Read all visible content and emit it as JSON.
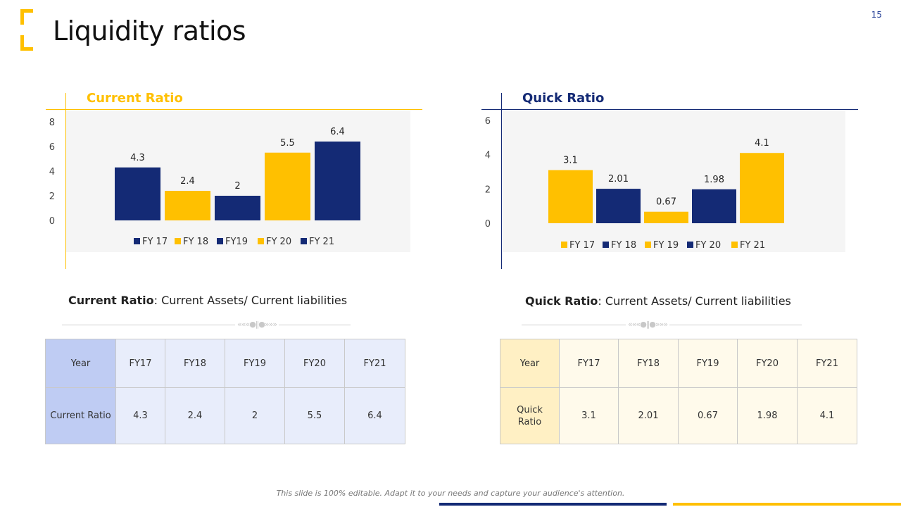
{
  "header": {
    "title": "Liquidity ratios",
    "page_number": "15"
  },
  "colors": {
    "navy": "#142a75",
    "yellow": "#ffc000",
    "blue_table_head": "#bfccf3",
    "blue_table_body": "#e8edfb",
    "yellow_table_head": "#fff0c4",
    "yellow_table_body": "#fffaeb"
  },
  "chart_data": [
    {
      "type": "bar",
      "title": "Current Ratio",
      "categories": [
        "FY 17",
        "FY 18",
        "FY19",
        "FY 20",
        "FY 21"
      ],
      "values": [
        4.3,
        2.4,
        2,
        5.5,
        6.4
      ],
      "value_labels": [
        "4.3",
        "2.4",
        "2",
        "5.5",
        "6.4"
      ],
      "bar_colors": [
        "#142a75",
        "#ffc000",
        "#142a75",
        "#ffc000",
        "#142a75"
      ],
      "yticks": [
        "0",
        "2",
        "4",
        "6",
        "8"
      ],
      "ylim": [
        0,
        8
      ],
      "legend_position": "bottom"
    },
    {
      "type": "bar",
      "title": "Quick Ratio",
      "categories": [
        "FY 17",
        "FY 18",
        "FY 19",
        "FY 20",
        "FY 21"
      ],
      "values": [
        3.1,
        2.01,
        0.67,
        1.98,
        4.1
      ],
      "value_labels": [
        "3.1",
        "2.01",
        "0.67",
        "1.98",
        "4.1"
      ],
      "bar_colors": [
        "#ffc000",
        "#142a75",
        "#ffc000",
        "#142a75",
        "#ffc000"
      ],
      "yticks": [
        "0",
        "2",
        "4",
        "6"
      ],
      "ylim": [
        0,
        6
      ],
      "legend_position": "bottom"
    }
  ],
  "left": {
    "formula_label": "Current Ratio",
    "formula_text": ": Current Assets/ Current liabilities",
    "table": {
      "header_label": "Year",
      "years": [
        "FY17",
        "FY18",
        "FY19",
        "FY20",
        "FY21"
      ],
      "row_label": "Current Ratio",
      "values": [
        "4.3",
        "2.4",
        "2",
        "5.5",
        "6.4"
      ]
    }
  },
  "right": {
    "formula_label": "Quick Ratio",
    "formula_text": ": Current Assets/ Current liabilities",
    "table": {
      "header_label": "Year",
      "years": [
        "FY17",
        "FY18",
        "FY19",
        "FY20",
        "FY21"
      ],
      "row_label_line1": "Quick",
      "row_label_line2": "Ratio",
      "values": [
        "3.1",
        "2.01",
        "0.67",
        "1.98",
        "4.1"
      ]
    }
  },
  "footer": {
    "note": "This slide is 100% editable. Adapt it to your needs and capture your audience's attention."
  }
}
